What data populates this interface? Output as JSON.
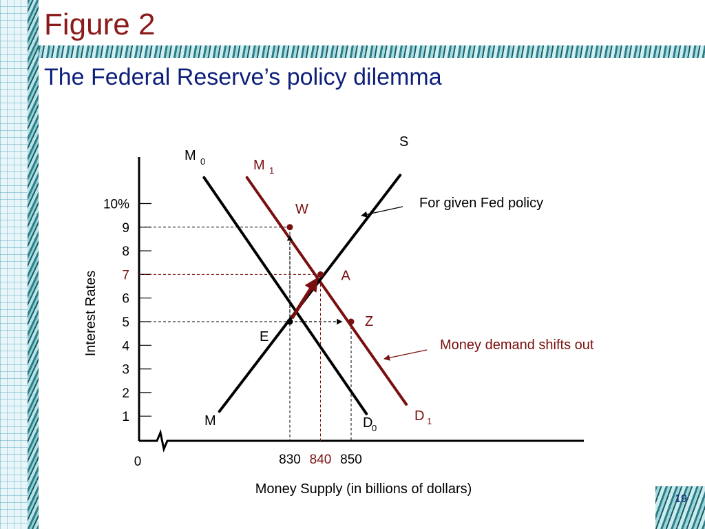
{
  "slide": {
    "figure_label": "Figure 2",
    "title": "The Federal Reserve’s policy dilemma",
    "page_number": "19"
  },
  "colors": {
    "title": "#0d1f7a",
    "figure_label": "#8b1a1a",
    "highlight": "#7a0f0f",
    "ink": "#000000"
  },
  "chart_data": {
    "type": "line",
    "xlabel": "Money Supply (in billions of dollars)",
    "ylabel": "Interest Rates",
    "origin_label": "0",
    "y_ticks": [
      {
        "value": 1,
        "label": "1"
      },
      {
        "value": 2,
        "label": "2"
      },
      {
        "value": 3,
        "label": "3"
      },
      {
        "value": 4,
        "label": "4"
      },
      {
        "value": 5,
        "label": "5"
      },
      {
        "value": 6,
        "label": "6"
      },
      {
        "value": 7,
        "label": "7",
        "highlight": true
      },
      {
        "value": 8,
        "label": "8"
      },
      {
        "value": 9,
        "label": "9"
      },
      {
        "value": 10,
        "label": "10%"
      }
    ],
    "x_ticks": [
      {
        "value": 830,
        "label": "830"
      },
      {
        "value": 840,
        "label": "840",
        "highlight": true
      },
      {
        "value": 850,
        "label": "850"
      }
    ],
    "axis_break": true,
    "series": [
      {
        "id": "M0D0",
        "start_label": "M0",
        "end_label": "D0",
        "color": "#000000",
        "points": [
          [
            802,
            11.1
          ],
          [
            855,
            1.1
          ]
        ]
      },
      {
        "id": "M1D1",
        "start_label": "M1",
        "end_label": "D1",
        "color": "#7a0f0f",
        "points": [
          [
            816,
            11.1
          ],
          [
            868,
            1.5
          ]
        ]
      },
      {
        "id": "MS",
        "start_label": "M",
        "end_label": "S",
        "color": "#000000",
        "points": [
          [
            807,
            1.2
          ],
          [
            866,
            11.2
          ]
        ]
      }
    ],
    "points": [
      {
        "id": "E",
        "label": "E",
        "x": 830,
        "y": 5,
        "color": "#000000"
      },
      {
        "id": "W",
        "label": "W",
        "x": 830,
        "y": 9,
        "color": "#7a0f0f"
      },
      {
        "id": "A",
        "label": "A",
        "x": 840,
        "y": 7,
        "color": "#7a0f0f"
      },
      {
        "id": "Z",
        "label": "Z",
        "x": 850,
        "y": 5,
        "color": "#7a0f0f"
      }
    ],
    "annotations": [
      {
        "id": "fed-policy",
        "text": "For given Fed policy",
        "color": "#000000"
      },
      {
        "id": "demand-shift",
        "text": "Money demand shifts out",
        "color": "#7a0f0f"
      }
    ]
  }
}
